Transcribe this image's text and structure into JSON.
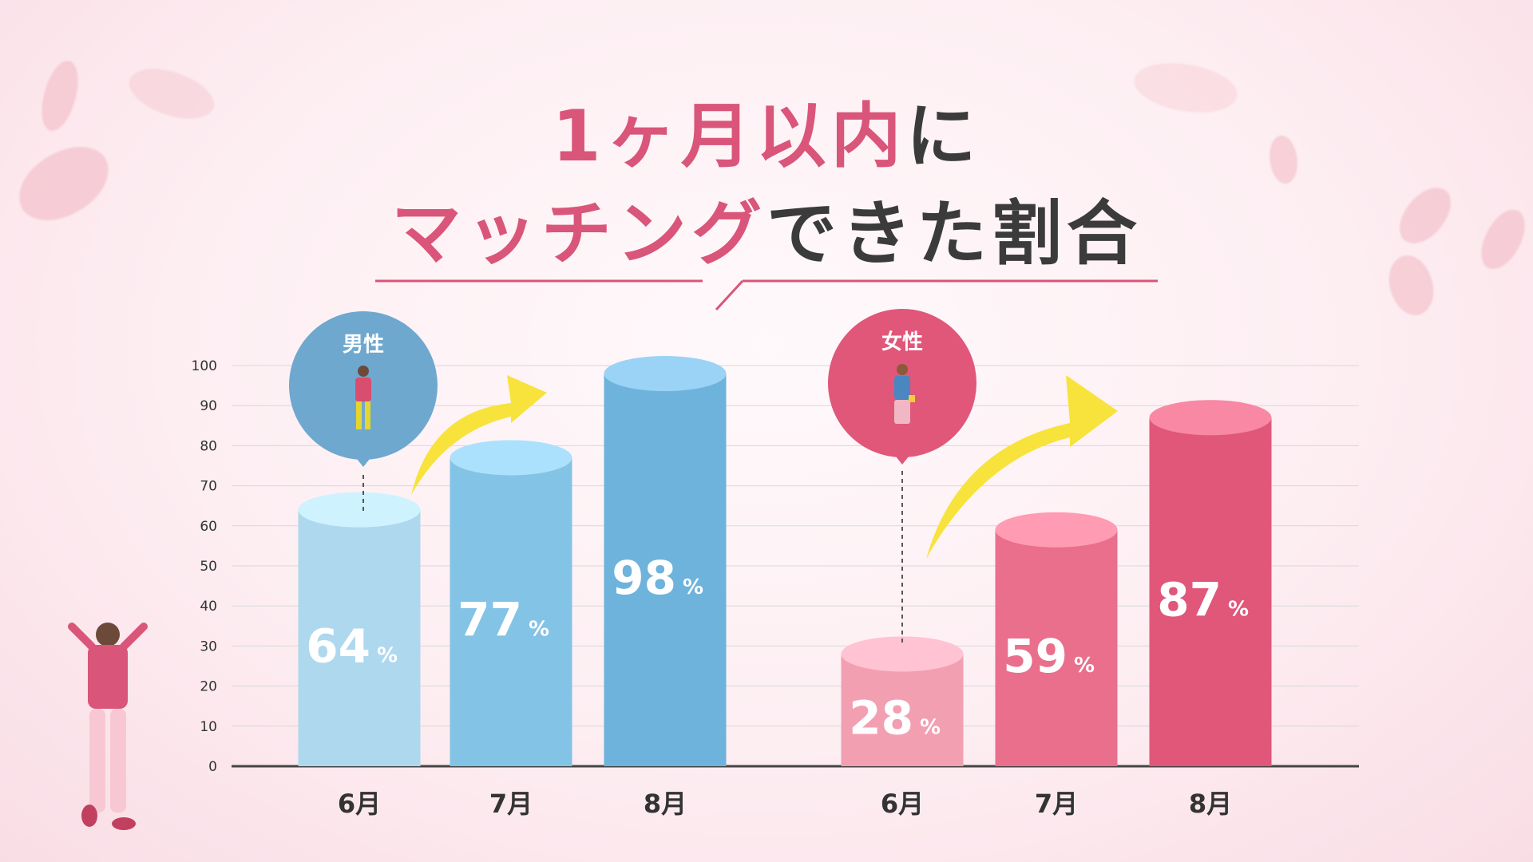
{
  "title": {
    "line1_highlight": "1ヶ月以内",
    "line1_rest": "に",
    "line2_highlight": "マッチング",
    "line2_rest": "できた割合"
  },
  "colors": {
    "accent": "#d9557a",
    "male": [
      "#aed8ee",
      "#83c3e6",
      "#6db3dc"
    ],
    "female": [
      "#f29fb2",
      "#e96f8c",
      "#e0577a"
    ],
    "arrow": "#f7e33b"
  },
  "chart_data": {
    "type": "bar",
    "ylim": [
      0,
      100
    ],
    "yticks": [
      0,
      10,
      20,
      30,
      40,
      50,
      60,
      70,
      80,
      90,
      100
    ],
    "unit": "%",
    "series": [
      {
        "name": "男性",
        "categories": [
          "6月",
          "7月",
          "8月"
        ],
        "values": [
          64,
          77,
          98
        ]
      },
      {
        "name": "女性",
        "categories": [
          "6月",
          "7月",
          "8月"
        ],
        "values": [
          28,
          59,
          87
        ]
      }
    ]
  }
}
